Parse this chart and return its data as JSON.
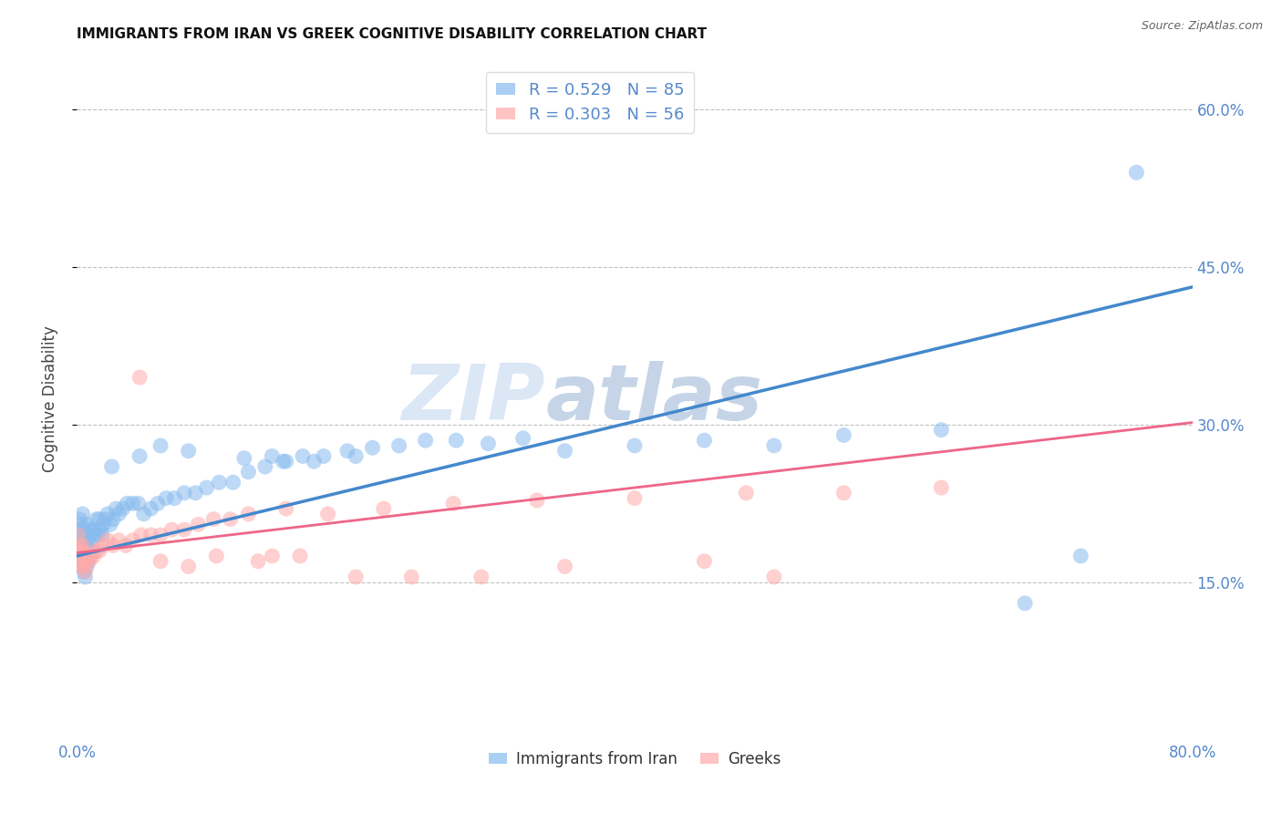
{
  "title": "IMMIGRANTS FROM IRAN VS GREEK COGNITIVE DISABILITY CORRELATION CHART",
  "source": "Source: ZipAtlas.com",
  "ylabel": "Cognitive Disability",
  "x_min": 0.0,
  "x_max": 0.8,
  "y_min": 0.0,
  "y_max": 0.65,
  "x_ticks": [
    0.0,
    0.1,
    0.2,
    0.3,
    0.4,
    0.5,
    0.6,
    0.7,
    0.8
  ],
  "x_tick_labels": [
    "0.0%",
    "",
    "",
    "",
    "",
    "",
    "",
    "",
    "80.0%"
  ],
  "y_ticks_right": [
    0.15,
    0.3,
    0.45,
    0.6
  ],
  "y_tick_labels_right": [
    "15.0%",
    "30.0%",
    "45.0%",
    "60.0%"
  ],
  "blue_color": "#88bbee",
  "pink_color": "#ffaaaa",
  "blue_line_color": "#4488cc",
  "pink_line_color": "#ee6688",
  "legend_blue_label": "R = 0.529   N = 85",
  "legend_pink_label": "R = 0.303   N = 56",
  "legend_label_blue": "Immigrants from Iran",
  "legend_label_pink": "Greeks",
  "watermark_zip": "ZIP",
  "watermark_atlas": "atlas",
  "background_color": "#ffffff",
  "grid_color": "#bbbbbb",
  "blue_intercept": 0.175,
  "blue_slope": 0.32,
  "pink_intercept": 0.178,
  "pink_slope": 0.155,
  "blue_scatter_x": [
    0.001,
    0.001,
    0.002,
    0.002,
    0.002,
    0.003,
    0.003,
    0.003,
    0.004,
    0.004,
    0.004,
    0.005,
    0.005,
    0.005,
    0.006,
    0.006,
    0.006,
    0.007,
    0.007,
    0.007,
    0.008,
    0.008,
    0.009,
    0.009,
    0.01,
    0.01,
    0.011,
    0.012,
    0.013,
    0.014,
    0.015,
    0.016,
    0.017,
    0.018,
    0.019,
    0.02,
    0.022,
    0.024,
    0.026,
    0.028,
    0.03,
    0.033,
    0.036,
    0.04,
    0.044,
    0.048,
    0.053,
    0.058,
    0.064,
    0.07,
    0.077,
    0.085,
    0.093,
    0.102,
    0.112,
    0.123,
    0.135,
    0.148,
    0.162,
    0.177,
    0.194,
    0.212,
    0.231,
    0.25,
    0.272,
    0.295,
    0.32,
    0.06,
    0.15,
    0.12,
    0.08,
    0.045,
    0.025,
    0.2,
    0.17,
    0.14,
    0.35,
    0.4,
    0.45,
    0.5,
    0.55,
    0.62,
    0.68,
    0.72,
    0.76
  ],
  "blue_scatter_y": [
    0.185,
    0.2,
    0.175,
    0.195,
    0.21,
    0.165,
    0.185,
    0.205,
    0.17,
    0.19,
    0.215,
    0.16,
    0.18,
    0.2,
    0.155,
    0.175,
    0.195,
    0.165,
    0.185,
    0.205,
    0.17,
    0.19,
    0.175,
    0.195,
    0.18,
    0.2,
    0.185,
    0.2,
    0.195,
    0.21,
    0.195,
    0.21,
    0.2,
    0.195,
    0.205,
    0.21,
    0.215,
    0.205,
    0.21,
    0.22,
    0.215,
    0.22,
    0.225,
    0.225,
    0.225,
    0.215,
    0.22,
    0.225,
    0.23,
    0.23,
    0.235,
    0.235,
    0.24,
    0.245,
    0.245,
    0.255,
    0.26,
    0.265,
    0.27,
    0.27,
    0.275,
    0.278,
    0.28,
    0.285,
    0.285,
    0.282,
    0.287,
    0.28,
    0.265,
    0.268,
    0.275,
    0.27,
    0.26,
    0.27,
    0.265,
    0.27,
    0.275,
    0.28,
    0.285,
    0.28,
    0.29,
    0.295,
    0.13,
    0.175,
    0.54
  ],
  "pink_scatter_x": [
    0.001,
    0.001,
    0.002,
    0.002,
    0.003,
    0.003,
    0.004,
    0.004,
    0.005,
    0.005,
    0.006,
    0.006,
    0.007,
    0.008,
    0.009,
    0.01,
    0.012,
    0.014,
    0.016,
    0.019,
    0.022,
    0.026,
    0.03,
    0.035,
    0.04,
    0.046,
    0.053,
    0.06,
    0.068,
    0.077,
    0.087,
    0.098,
    0.11,
    0.123,
    0.15,
    0.18,
    0.22,
    0.27,
    0.33,
    0.4,
    0.48,
    0.55,
    0.62,
    0.2,
    0.24,
    0.29,
    0.35,
    0.14,
    0.5,
    0.45,
    0.1,
    0.13,
    0.16,
    0.08,
    0.06,
    0.045
  ],
  "pink_scatter_y": [
    0.18,
    0.195,
    0.17,
    0.185,
    0.165,
    0.18,
    0.17,
    0.185,
    0.165,
    0.178,
    0.16,
    0.175,
    0.17,
    0.175,
    0.17,
    0.175,
    0.175,
    0.18,
    0.18,
    0.185,
    0.19,
    0.185,
    0.19,
    0.185,
    0.19,
    0.195,
    0.195,
    0.195,
    0.2,
    0.2,
    0.205,
    0.21,
    0.21,
    0.215,
    0.22,
    0.215,
    0.22,
    0.225,
    0.228,
    0.23,
    0.235,
    0.235,
    0.24,
    0.155,
    0.155,
    0.155,
    0.165,
    0.175,
    0.155,
    0.17,
    0.175,
    0.17,
    0.175,
    0.165,
    0.17,
    0.345
  ]
}
